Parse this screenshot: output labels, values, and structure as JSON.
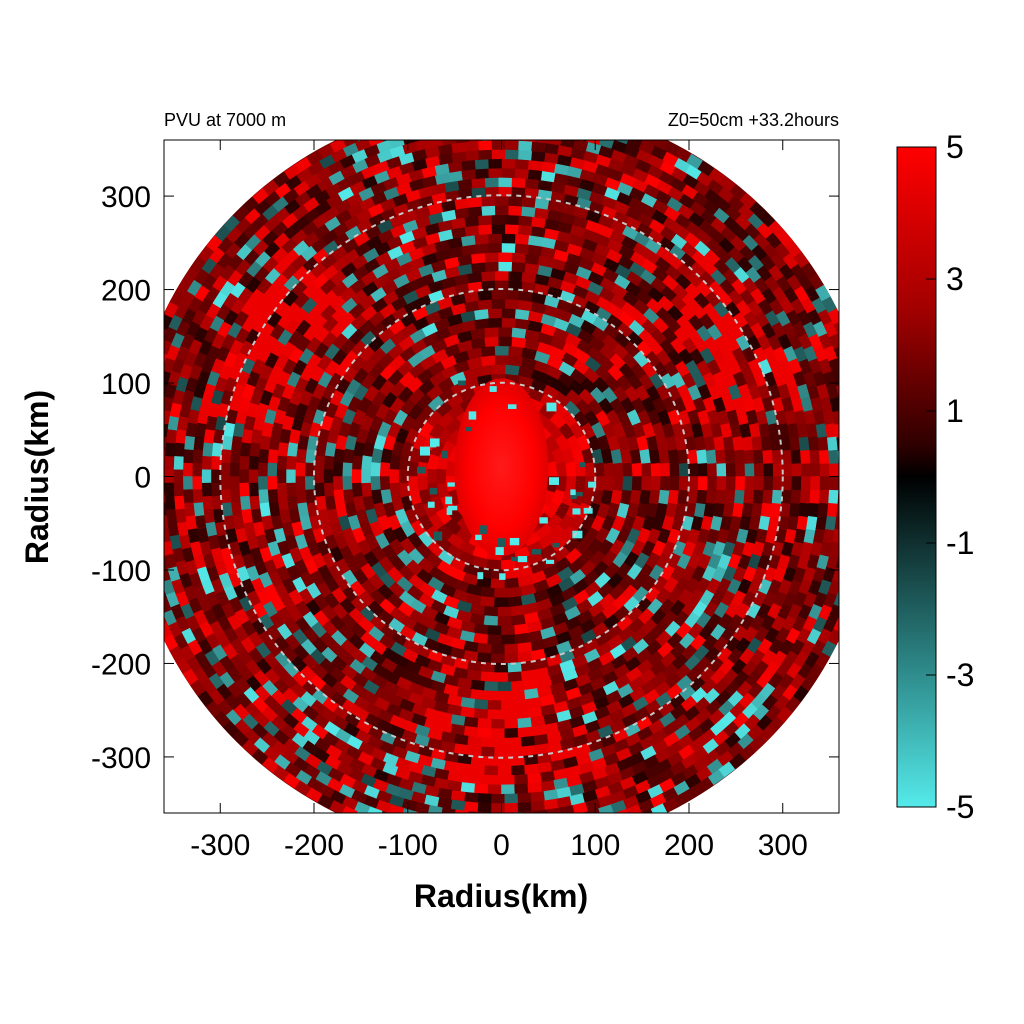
{
  "chart_data": {
    "type": "heatmap",
    "projection": "polar field in cartesian frame",
    "title_left": "PVU at  7000 m",
    "title_right": "Z0=50cm  +33.2hours",
    "xlabel": "Radius(km)",
    "ylabel": "Radius(km)",
    "xlim": [
      -360,
      360
    ],
    "ylim": [
      -360,
      360
    ],
    "x_ticks": [
      -300,
      -200,
      -100,
      0,
      100,
      200,
      300
    ],
    "y_ticks": [
      -300,
      -200,
      -100,
      0,
      100,
      200,
      300
    ],
    "x_tick_labels": [
      "-300",
      "-200",
      "-100",
      "0",
      "100",
      "200",
      "300"
    ],
    "y_tick_labels": [
      "-300",
      "-200",
      "-100",
      "0",
      "100",
      "200",
      "300"
    ],
    "domain_radius": 400,
    "reference_circles": [
      100,
      200,
      300
    ],
    "colorbar": {
      "min": -5,
      "max": 5,
      "ticks": [
        5,
        3,
        1,
        -1,
        -3,
        -5
      ],
      "tick_labels": [
        "5",
        "3",
        "1",
        "-1",
        "-3",
        "-5"
      ],
      "colors": {
        "high": "#ff0000",
        "mid": "#000000",
        "low": "#55eaea"
      }
    },
    "features": {
      "core": {
        "description": "strong positive PV core",
        "value": 5,
        "radius_x": 50,
        "radius_y": 95,
        "center": [
          0,
          10
        ]
      },
      "outer_field": {
        "description": "banded mixture of positive and negative PV",
        "range": [
          -5,
          5
        ]
      }
    },
    "grid": false,
    "legend": "colorbar-right"
  }
}
